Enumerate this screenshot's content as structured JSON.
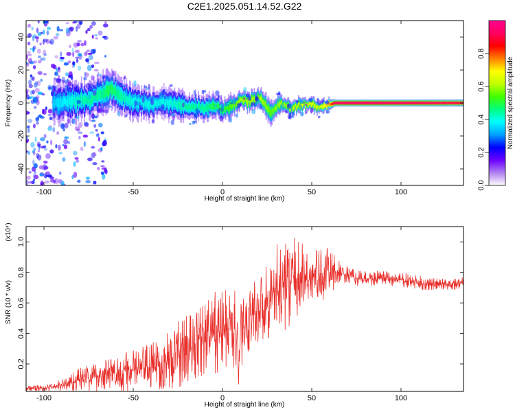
{
  "title": "C2E1.2025.051.14.52.G22",
  "chart_data": [
    {
      "type": "heatmap",
      "xlabel": "Height of straight line (km)",
      "ylabel": "Frequency (Hz)",
      "xlim": [
        -110,
        135
      ],
      "ylim": [
        -50,
        50
      ],
      "x_ticks": [
        -100,
        -50,
        0,
        50,
        100
      ],
      "y_ticks": [
        -40,
        -20,
        0,
        20,
        40
      ],
      "colorbar": {
        "label": "Normalized spectral amplitude",
        "range": [
          0,
          1
        ],
        "ticks": [
          0.0,
          0.2,
          0.4,
          0.6,
          0.8
        ],
        "tick_labels": [
          "0.0",
          "0.2",
          "0.4",
          "0.6",
          "0.8"
        ],
        "colormap": [
          "#ffffff",
          "#b080f0",
          "#6a00ff",
          "#0000ff",
          "#00a0ff",
          "#00ffff",
          "#00ff80",
          "#40ff00",
          "#c0ff00",
          "#ffff00",
          "#ff8000",
          "#ff0000",
          "#ff0060",
          "#ff0090"
        ]
      },
      "ridge": {
        "x": [
          -95,
          -85,
          -75,
          -68,
          -63,
          -58,
          -50,
          -40,
          -30,
          -20,
          -10,
          -5,
          0,
          5,
          10,
          15,
          20,
          23,
          27,
          32,
          38,
          45,
          50,
          55,
          60,
          63,
          80,
          100,
          120,
          135
        ],
        "freq": [
          0,
          1,
          2,
          5,
          9,
          5,
          1,
          -1,
          0,
          -2,
          -3,
          -1,
          -4,
          -2,
          2,
          1,
          3,
          1,
          -6,
          0,
          -3,
          -1,
          0,
          -3,
          -1,
          0,
          0,
          0,
          0,
          0
        ],
        "width": [
          10,
          10,
          10,
          10,
          10,
          9,
          9,
          8,
          8,
          7,
          7,
          6,
          6,
          6,
          5,
          5,
          5,
          6,
          6,
          5,
          4,
          4,
          4,
          4,
          3,
          2,
          2,
          2,
          2,
          2
        ],
        "amplitude": [
          0.35,
          0.4,
          0.45,
          0.45,
          0.5,
          0.45,
          0.4,
          0.4,
          0.4,
          0.45,
          0.45,
          0.5,
          0.5,
          0.55,
          0.6,
          0.6,
          0.6,
          0.6,
          0.55,
          0.6,
          0.6,
          0.65,
          0.65,
          0.65,
          0.75,
          0.95,
          0.97,
          0.95,
          0.93,
          0.9
        ]
      },
      "noise_region_x": [
        -110,
        -80
      ],
      "legend": "none",
      "grid": false
    },
    {
      "type": "line",
      "xlabel": "Height of straight line (km)",
      "ylabel": "SNR (10 * v/v)",
      "y_scale_label": "(x10⁴)",
      "xlim": [
        -110,
        135
      ],
      "ylim": [
        0.02,
        1.1
      ],
      "x_ticks": [
        -100,
        -50,
        0,
        50,
        100
      ],
      "y_ticks": [
        0.2,
        0.4,
        0.6,
        0.8,
        1.0
      ],
      "color": "#e8302c",
      "x": [
        -110,
        -100,
        -90,
        -80,
        -70,
        -60,
        -50,
        -40,
        -30,
        -20,
        -10,
        0,
        5,
        8,
        9,
        10,
        12,
        15,
        20,
        25,
        30,
        35,
        40,
        45,
        50,
        55,
        60,
        65,
        70,
        75,
        80,
        90,
        100,
        110,
        120,
        135
      ],
      "mean": [
        0.04,
        0.04,
        0.06,
        0.1,
        0.12,
        0.14,
        0.16,
        0.18,
        0.22,
        0.3,
        0.37,
        0.42,
        0.44,
        0.4,
        0.05,
        0.4,
        0.45,
        0.5,
        0.56,
        0.62,
        0.68,
        0.72,
        0.75,
        0.76,
        0.77,
        0.78,
        0.8,
        0.8,
        0.78,
        0.76,
        0.76,
        0.76,
        0.75,
        0.73,
        0.72,
        0.73
      ],
      "spread": [
        0.02,
        0.02,
        0.04,
        0.08,
        0.1,
        0.12,
        0.14,
        0.16,
        0.2,
        0.24,
        0.26,
        0.28,
        0.28,
        0.3,
        0.04,
        0.26,
        0.22,
        0.22,
        0.24,
        0.26,
        0.3,
        0.3,
        0.28,
        0.24,
        0.2,
        0.18,
        0.16,
        0.08,
        0.06,
        0.05,
        0.05,
        0.05,
        0.05,
        0.05,
        0.04,
        0.04
      ],
      "legend": "none",
      "grid": false
    }
  ]
}
